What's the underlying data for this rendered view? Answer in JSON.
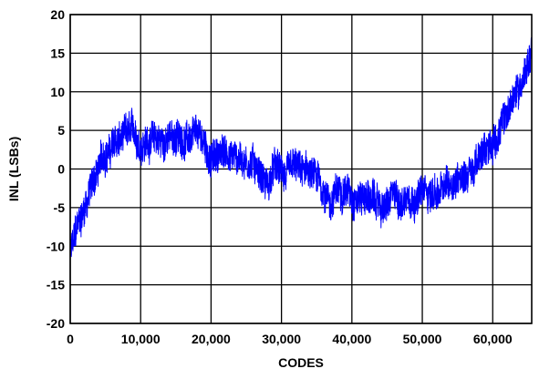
{
  "chart_data": {
    "type": "line",
    "title": "",
    "xlabel": "CODES",
    "ylabel": "INL (LSBs)",
    "xlim": [
      0,
      65536
    ],
    "ylim": [
      -20,
      20
    ],
    "x_ticks": [
      0,
      10000,
      20000,
      30000,
      40000,
      50000,
      60000
    ],
    "x_tick_labels": [
      "0",
      "10,000",
      "20,000",
      "30,000",
      "40,000",
      "50,000",
      "60,000"
    ],
    "y_ticks": [
      -20,
      -15,
      -10,
      -5,
      0,
      5,
      10,
      15,
      20
    ],
    "y_tick_labels": [
      "-20",
      "-15",
      "-10",
      "-5",
      "0",
      "5",
      "10",
      "15",
      "20"
    ],
    "grid": true,
    "legend": "none",
    "series": [
      {
        "color": "#0000ff",
        "x": [
          0,
          1000,
          2000,
          3000,
          4000,
          5000,
          6000,
          7000,
          8000,
          9000,
          10000,
          11000,
          12000,
          13000,
          14000,
          15000,
          16000,
          17000,
          18000,
          19000,
          20000,
          21000,
          22000,
          23000,
          24000,
          25000,
          26000,
          27000,
          28000,
          29000,
          30000,
          31000,
          32000,
          33000,
          34000,
          35000,
          36000,
          37000,
          38000,
          39000,
          40000,
          41000,
          42000,
          43000,
          44000,
          45000,
          46000,
          47000,
          48000,
          49000,
          50000,
          51000,
          52000,
          53000,
          54000,
          55000,
          56000,
          57000,
          58000,
          59000,
          60000,
          61000,
          62000,
          63000,
          64000,
          65000,
          65535
        ],
        "y": [
          -11,
          -8,
          -5,
          -2,
          0,
          2,
          3,
          3.5,
          4,
          4,
          3.5,
          4,
          4,
          3.5,
          4,
          4,
          4,
          4,
          3.5,
          3,
          1,
          2,
          2,
          2,
          1.5,
          1.5,
          1,
          0,
          -2,
          0,
          -1,
          -1,
          -1,
          -1,
          -1,
          -2,
          -3,
          -4,
          -3,
          -2,
          -3,
          -3,
          -3,
          -4,
          -5,
          -5,
          -4,
          -4,
          -3,
          -3,
          -3,
          -3,
          -3,
          -3,
          -2,
          -1,
          0,
          0,
          1,
          2,
          4,
          5,
          7,
          9,
          11,
          14,
          16
        ]
      }
    ]
  }
}
